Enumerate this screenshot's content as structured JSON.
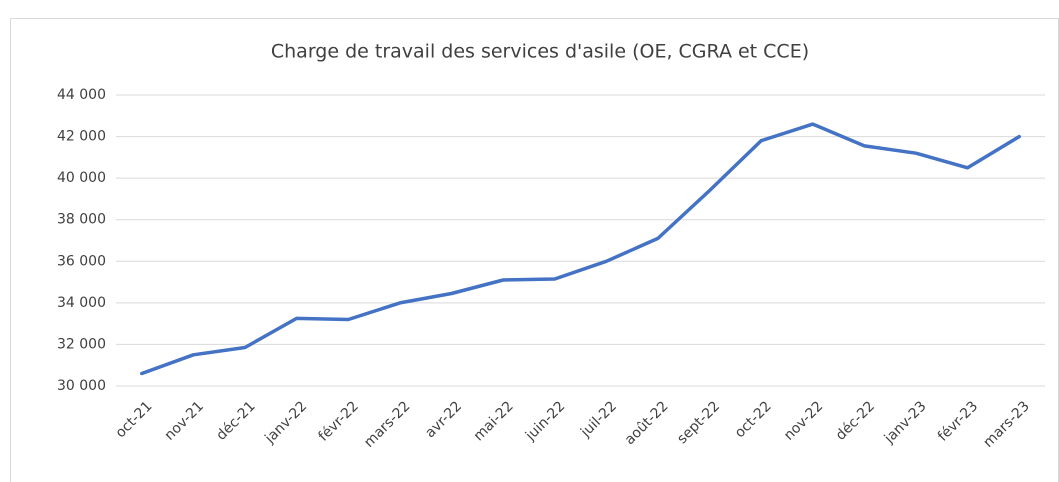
{
  "chart_data": {
    "type": "line",
    "title": "Charge de travail des services d'asile (OE, CGRA et CCE)",
    "categories": [
      "oct-21",
      "nov-21",
      "déc-21",
      "janv-22",
      "févr-22",
      "mars-22",
      "avr-22",
      "mai-22",
      "juin-22",
      "juil-22",
      "août-22",
      "sept-22",
      "oct-22",
      "nov-22",
      "déc-22",
      "janv-23",
      "févr-23",
      "mars-23"
    ],
    "values": [
      30600,
      31500,
      31850,
      33250,
      33200,
      34000,
      34450,
      35100,
      35150,
      36000,
      37100,
      39400,
      41800,
      42600,
      41550,
      41200,
      40500,
      42000
    ],
    "color": "#4472c4",
    "ylim": [
      30000,
      44000
    ],
    "yticks": [
      {
        "value": 30000,
        "label": "30 000"
      },
      {
        "value": 32000,
        "label": "32 000"
      },
      {
        "value": 34000,
        "label": "34 000"
      },
      {
        "value": 36000,
        "label": "36 000"
      },
      {
        "value": 38000,
        "label": "38 000"
      },
      {
        "value": 40000,
        "label": "40 000"
      },
      {
        "value": 42000,
        "label": "42 000"
      },
      {
        "value": 44000,
        "label": "44 000"
      }
    ],
    "grid": true
  }
}
